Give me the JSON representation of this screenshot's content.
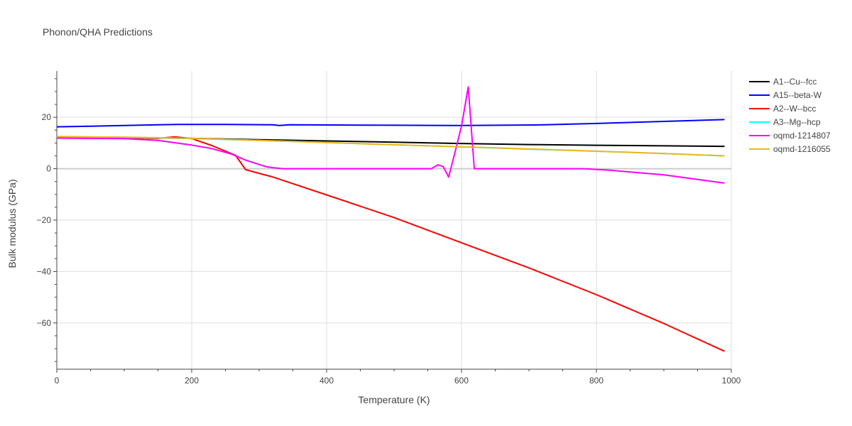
{
  "chart_data": {
    "type": "line",
    "title": "Phonon/QHA Predictions",
    "xlabel": "Temperature (K)",
    "ylabel": "Bulk modulus (GPa)",
    "xlim": [
      0,
      1000
    ],
    "ylim": [
      -78,
      38
    ],
    "xticks": [
      0,
      200,
      400,
      600,
      800,
      1000
    ],
    "xtick_labels": [
      "0",
      "200",
      "400",
      "600",
      "800",
      "1000"
    ],
    "yticks": [
      -60,
      -40,
      -20,
      0,
      20
    ],
    "ytick_labels": [
      "−60",
      "−40",
      "−20",
      "0",
      "20"
    ],
    "grid": true,
    "legend_position": "top-right",
    "series": [
      {
        "name": "A1--Cu--fcc",
        "color": "#000000",
        "x": [
          0,
          100,
          200,
          300,
          400,
          500,
          600,
          700,
          800,
          900,
          990
        ],
        "y": [
          12.2,
          12.1,
          11.8,
          11.3,
          10.8,
          10.3,
          9.8,
          9.4,
          9.1,
          8.9,
          8.7
        ]
      },
      {
        "name": "A15--beta-W",
        "color": "#0000ff",
        "x": [
          0,
          50,
          100,
          150,
          180,
          250,
          320,
          330,
          345,
          400,
          500,
          600,
          710,
          800,
          900,
          990
        ],
        "y": [
          16.3,
          16.5,
          16.8,
          17.1,
          17.2,
          17.2,
          17.1,
          16.8,
          17.1,
          17.0,
          16.9,
          16.8,
          17.0,
          17.6,
          18.4,
          19.1
        ]
      },
      {
        "name": "A2--W--bcc",
        "color": "#ff0000",
        "x": [
          0,
          100,
          150,
          175,
          200,
          230,
          265,
          280,
          320,
          400,
          500,
          600,
          700,
          800,
          900,
          990
        ],
        "y": [
          12.0,
          11.9,
          11.8,
          12.4,
          11.7,
          9.0,
          5.2,
          -0.4,
          -3.2,
          -10.2,
          -19.0,
          -28.8,
          -38.6,
          -49.0,
          -60.2,
          -71.0
        ]
      },
      {
        "name": "A3--Mg--hcp",
        "color": "#00ffff",
        "x": [
          0,
          100,
          200,
          300,
          400,
          500,
          600,
          700,
          800,
          900,
          990
        ],
        "y": [
          12.3,
          12.2,
          11.7,
          11.0,
          10.2,
          9.3,
          8.5,
          7.6,
          6.8,
          5.9,
          5.0
        ]
      },
      {
        "name": "oqmd-1214807",
        "color": "#ff00ff",
        "x": [
          0,
          100,
          150,
          200,
          230,
          260,
          280,
          310,
          320,
          335,
          400,
          500,
          555,
          565,
          573,
          581,
          590,
          600,
          610,
          619,
          700,
          780,
          820,
          900,
          990
        ],
        "y": [
          11.9,
          11.7,
          11.0,
          9.2,
          7.8,
          5.6,
          3.3,
          0.8,
          0.4,
          0.0,
          0.0,
          0.0,
          0.0,
          1.5,
          0.8,
          -3.3,
          6.0,
          16.5,
          31.8,
          0.0,
          0.0,
          0.0,
          -0.6,
          -2.4,
          -5.6
        ]
      },
      {
        "name": "oqmd-1216055",
        "color": "#f2b51b",
        "x": [
          0,
          100,
          200,
          300,
          400,
          500,
          600,
          700,
          800,
          900,
          990
        ],
        "y": [
          12.5,
          12.3,
          11.8,
          11.0,
          10.2,
          9.3,
          8.5,
          7.7,
          6.8,
          5.9,
          5.0
        ]
      }
    ]
  }
}
